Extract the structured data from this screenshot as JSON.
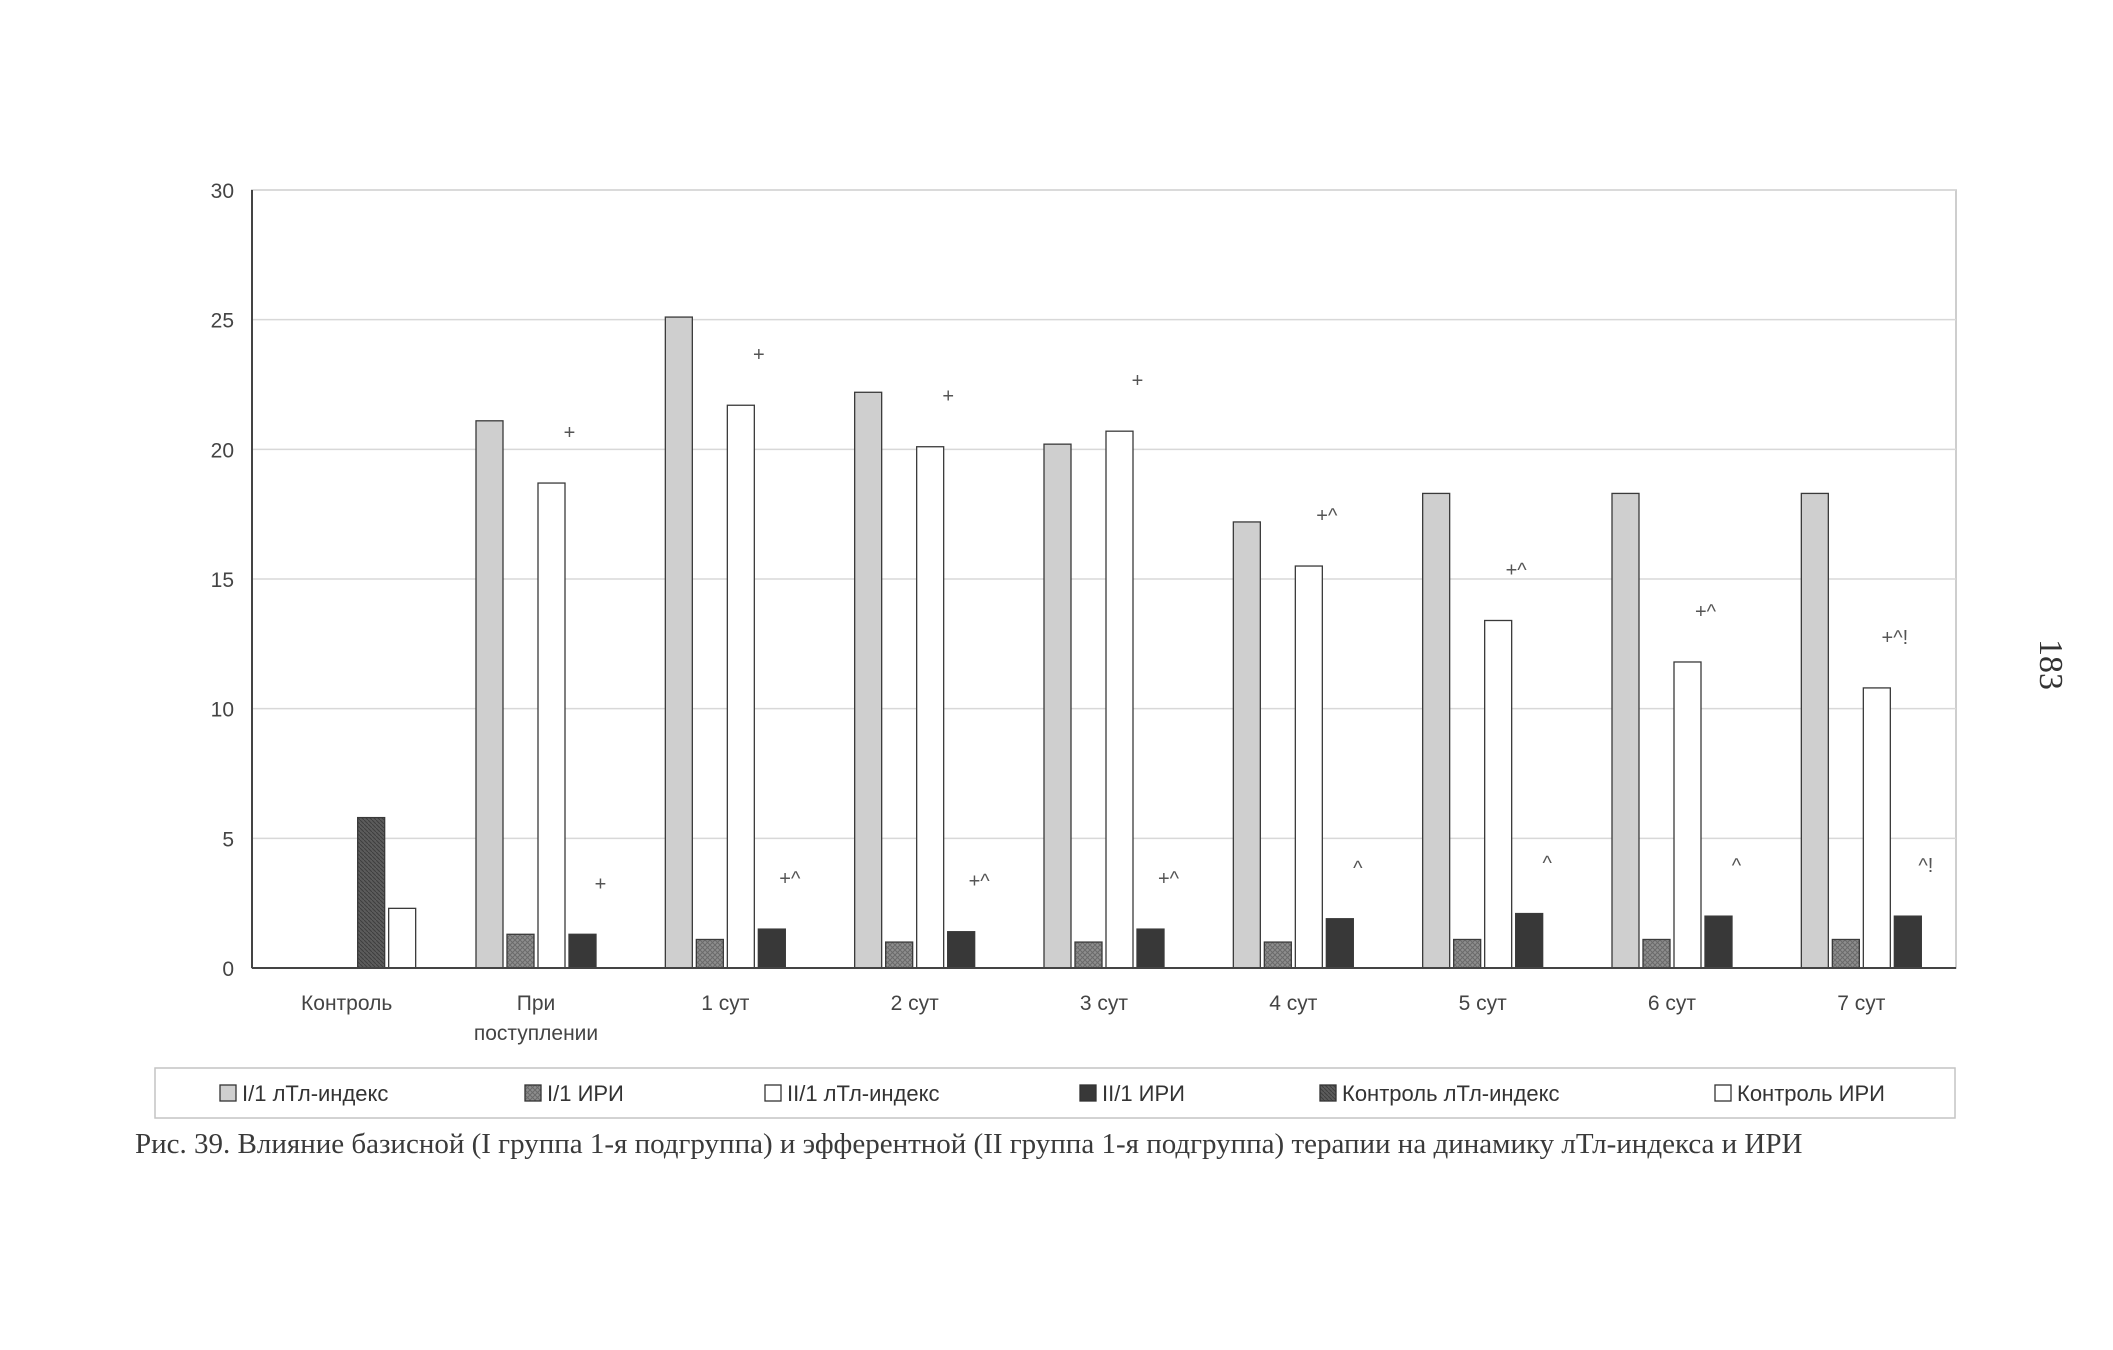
{
  "page_number": "183",
  "caption": "Рис. 39. Влияние базисной (I группа 1-я подгруппа) и эфферентной (II группа 1-я подгруппа) терапии на динамику лТл-индекса и ИРИ",
  "colors": {
    "s1": "#cfcfcf",
    "s2": "#8a8a8a",
    "s3": "#ffffff",
    "s4": "#383838",
    "s5": "#555555",
    "s6": "#ffffff",
    "axis": "#444444",
    "grid": "#d8d8d8",
    "text": "#444444"
  },
  "chart_data": {
    "type": "bar",
    "ylim": [
      0,
      30
    ],
    "yticks": [
      "0",
      "5",
      "10",
      "15",
      "20",
      "25",
      "30"
    ],
    "grid": true,
    "legend_position": "bottom",
    "categories": [
      [
        "Контроль"
      ],
      [
        "При",
        "поступлении"
      ],
      [
        "1 сут"
      ],
      [
        "2 сут"
      ],
      [
        "3 сут"
      ],
      [
        "4 сут"
      ],
      [
        "5 сут"
      ],
      [
        "6 сут"
      ],
      [
        "7 сут"
      ]
    ],
    "series": [
      {
        "name": "I/1 лТл-индекс",
        "values": [
          null,
          21.1,
          25.1,
          22.2,
          20.2,
          17.2,
          18.3,
          18.3,
          18.3
        ]
      },
      {
        "name": "I/1 ИРИ",
        "values": [
          null,
          1.3,
          1.1,
          1.0,
          1.0,
          1.0,
          1.1,
          1.1,
          1.1
        ]
      },
      {
        "name": "II/1 лТл-индекс",
        "values": [
          null,
          18.7,
          21.7,
          20.1,
          20.7,
          15.5,
          13.4,
          11.8,
          10.8
        ]
      },
      {
        "name": "II/1 ИРИ",
        "values": [
          null,
          1.3,
          1.5,
          1.4,
          1.5,
          1.9,
          2.1,
          2.0,
          2.0
        ]
      },
      {
        "name": "Контроль лТл-индекс",
        "values": [
          5.8,
          null,
          null,
          null,
          null,
          null,
          null,
          null,
          null
        ]
      },
      {
        "name": "Контроль ИРИ",
        "values": [
          2.3,
          null,
          null,
          null,
          null,
          null,
          null,
          null,
          null
        ]
      }
    ],
    "annotations": [
      {
        "category": 1,
        "series": 2,
        "text": "+"
      },
      {
        "category": 1,
        "series": 3,
        "text": "+"
      },
      {
        "category": 2,
        "series": 2,
        "text": "+"
      },
      {
        "category": 2,
        "series": 3,
        "text": "+^"
      },
      {
        "category": 3,
        "series": 2,
        "text": "+"
      },
      {
        "category": 3,
        "series": 3,
        "text": "+^"
      },
      {
        "category": 4,
        "series": 2,
        "text": "+"
      },
      {
        "category": 4,
        "series": 3,
        "text": "+^"
      },
      {
        "category": 5,
        "series": 2,
        "text": "+^"
      },
      {
        "category": 5,
        "series": 3,
        "text": "^"
      },
      {
        "category": 6,
        "series": 2,
        "text": "+^"
      },
      {
        "category": 6,
        "series": 3,
        "text": "^"
      },
      {
        "category": 7,
        "series": 2,
        "text": "+^"
      },
      {
        "category": 7,
        "series": 3,
        "text": "^"
      },
      {
        "category": 8,
        "series": 2,
        "text": "+^!"
      },
      {
        "category": 8,
        "series": 3,
        "text": "^!"
      }
    ]
  }
}
